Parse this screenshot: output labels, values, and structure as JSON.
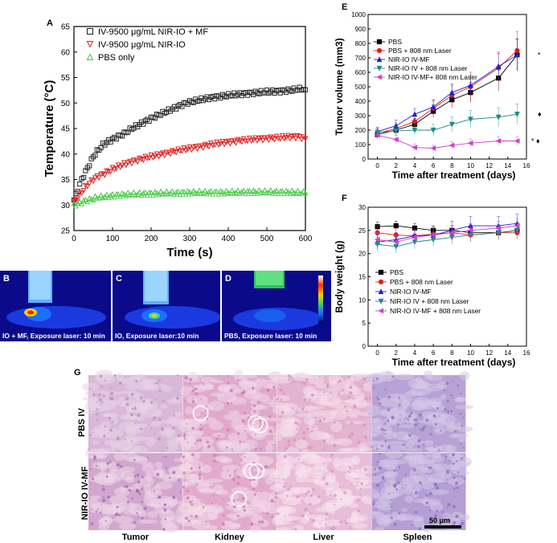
{
  "panel_letters": {
    "A": "A",
    "B": "B",
    "C": "C",
    "D": "D",
    "E": "E",
    "F": "F",
    "G": "G"
  },
  "chart_data": [
    {
      "id": "A",
      "type": "scatter",
      "xlabel": "Time (s)",
      "ylabel": "Temperature (°C)",
      "xlim": [
        0,
        600
      ],
      "ylim": [
        25,
        65
      ],
      "xticks": [
        0,
        100,
        200,
        300,
        400,
        500,
        600
      ],
      "yticks": [
        25,
        30,
        35,
        40,
        45,
        50,
        55,
        60,
        65
      ],
      "legend_position": "top-right",
      "series": [
        {
          "name": "IV-9500 μg/mL NIR-IO + MF",
          "marker": "square",
          "color": "#222222",
          "x": [
            0,
            10,
            20,
            30,
            40,
            50,
            60,
            75,
            90,
            110,
            130,
            150,
            175,
            200,
            230,
            260,
            290,
            320,
            350,
            380,
            410,
            440,
            470,
            500,
            530,
            560,
            590,
            600
          ],
          "y": [
            31,
            33,
            35,
            36.5,
            38,
            39.5,
            40.5,
            41.8,
            42.5,
            43.3,
            44,
            45,
            46,
            47,
            48,
            49,
            50,
            50.5,
            51,
            51.3,
            51.6,
            51.8,
            52,
            52.2,
            52.3,
            52.5,
            52.8,
            52.6
          ]
        },
        {
          "name": "IV-9500 μg/mL NIR-IO",
          "marker": "triangle-down",
          "color": "#e02020",
          "x": [
            0,
            10,
            20,
            30,
            40,
            50,
            60,
            80,
            100,
            130,
            160,
            190,
            220,
            250,
            280,
            310,
            340,
            370,
            400,
            430,
            460,
            490,
            520,
            550,
            580,
            600
          ],
          "y": [
            30.5,
            31.5,
            32.5,
            33.5,
            34.3,
            35,
            35.5,
            36.2,
            37,
            38,
            38.7,
            39.3,
            39.8,
            40.3,
            40.8,
            41.2,
            41.6,
            42,
            42.3,
            42.6,
            42.8,
            43,
            43.1,
            43.3,
            43.4,
            43
          ]
        },
        {
          "name": "PBS only",
          "marker": "triangle-up",
          "color": "#44cc44",
          "x": [
            0,
            10,
            20,
            30,
            40,
            50,
            60,
            80,
            100,
            130,
            160,
            200,
            250,
            300,
            350,
            400,
            450,
            500,
            550,
            600
          ],
          "y": [
            30,
            30.3,
            30.6,
            30.9,
            31.1,
            31.3,
            31.5,
            31.7,
            31.9,
            32.1,
            32.2,
            32.3,
            32.4,
            32.5,
            32.5,
            32.5,
            32.6,
            32.6,
            32.6,
            32.4
          ]
        }
      ]
    },
    {
      "id": "E",
      "type": "line",
      "xlabel": "Time after treatment (days)",
      "ylabel": "Tumor volume (mm3)",
      "xlim": [
        -1,
        16
      ],
      "ylim": [
        0,
        1000
      ],
      "xticks": [
        0,
        2,
        4,
        6,
        8,
        10,
        12,
        14,
        16
      ],
      "yticks": [
        0,
        100,
        200,
        300,
        400,
        500,
        600,
        700,
        800,
        900,
        1000
      ],
      "legend_position": "top-left",
      "markers_right": [
        "*",
        "♦",
        "* ♦"
      ],
      "x": [
        0,
        2,
        4,
        6,
        8,
        10,
        13,
        15
      ],
      "series": [
        {
          "name": "PBS",
          "marker": "square",
          "color": "#000000",
          "values": [
            170,
            200,
            240,
            330,
            410,
            460,
            560,
            720
          ],
          "err": [
            30,
            35,
            40,
            45,
            55,
            70,
            90,
            110
          ]
        },
        {
          "name": "PBS + 808 nm Laser",
          "marker": "circle",
          "color": "#e02020",
          "values": [
            180,
            210,
            260,
            350,
            440,
            500,
            630,
            750
          ],
          "err": [
            30,
            40,
            45,
            55,
            70,
            100,
            110,
            130
          ]
        },
        {
          "name": "NIR-IO IV-MF",
          "marker": "triangle-up",
          "color": "#2020d0",
          "values": [
            190,
            230,
            310,
            360,
            460,
            510,
            640,
            720
          ],
          "err": [
            30,
            40,
            40,
            50,
            60,
            70,
            90,
            110
          ]
        },
        {
          "name": "NIR-IO IV + 808 nm Laser",
          "marker": "triangle-down",
          "color": "#1a8a8a",
          "values": [
            185,
            195,
            200,
            200,
            240,
            275,
            290,
            310
          ],
          "err": [
            30,
            30,
            35,
            40,
            50,
            60,
            65,
            70
          ]
        },
        {
          "name": "NIR-IO IV-MF+ 808 nm Laser",
          "marker": "triangle-left",
          "color": "#d040d0",
          "values": [
            165,
            135,
            80,
            75,
            95,
            110,
            125,
            125
          ],
          "err": [
            25,
            30,
            25,
            20,
            25,
            30,
            30,
            30
          ]
        }
      ]
    },
    {
      "id": "F",
      "type": "line",
      "xlabel": "Time after treatment (days)",
      "ylabel": "Body weight (g)",
      "xlim": [
        -1,
        16
      ],
      "ylim": [
        0,
        30
      ],
      "xticks": [
        0,
        2,
        4,
        6,
        8,
        10,
        12,
        14,
        16
      ],
      "yticks": [
        0,
        5,
        10,
        15,
        20,
        25,
        30
      ],
      "legend_position": "center-left",
      "x": [
        0,
        2,
        4,
        6,
        8,
        10,
        13,
        15
      ],
      "series": [
        {
          "name": "PBS",
          "marker": "square",
          "color": "#000000",
          "values": [
            25.8,
            26.0,
            25.5,
            25.0,
            25.0,
            24.5,
            24.5,
            25.0
          ],
          "err": [
            1,
            1,
            1,
            1,
            1,
            1,
            1,
            1
          ]
        },
        {
          "name": "PBS + 808 nm Laser",
          "marker": "circle",
          "color": "#e02020",
          "values": [
            24.5,
            24.0,
            23.8,
            24.2,
            24.5,
            24.0,
            24.5,
            24.5
          ],
          "err": [
            1.5,
            1.5,
            1.5,
            1.5,
            1.5,
            1.5,
            1.5,
            1.5
          ]
        },
        {
          "name": "NIR-IO IV-MF",
          "marker": "triangle-up",
          "color": "#2020d0",
          "values": [
            22.5,
            23.0,
            23.8,
            24.0,
            25.0,
            26.0,
            26.0,
            26.5
          ],
          "err": [
            1.5,
            1.5,
            1.5,
            1.5,
            2,
            2,
            2,
            2
          ]
        },
        {
          "name": "NIR-IO IV + 808 nm Laser",
          "marker": "triangle-down",
          "color": "#1a8a8a",
          "values": [
            22.0,
            21.5,
            22.5,
            23.0,
            23.5,
            24.0,
            24.5,
            25.0
          ],
          "err": [
            1.5,
            1.5,
            1.5,
            1.5,
            1.5,
            1.5,
            1.5,
            1.5
          ]
        },
        {
          "name": "NIR-IO IV-MF + 808 nm Laser",
          "marker": "triangle-left",
          "color": "#d040d0",
          "values": [
            23.0,
            22.5,
            23.5,
            24.0,
            24.5,
            25.0,
            25.5,
            26.0
          ],
          "err": [
            1.5,
            1.5,
            1.5,
            1.5,
            1.5,
            1.5,
            1.5,
            1.5
          ]
        }
      ]
    }
  ],
  "thermal": [
    {
      "letter": "B",
      "caption": "IO + MF, Exposure laser: 10 min",
      "hotspot": "high"
    },
    {
      "letter": "C",
      "caption": "IO, Exposure laser:10 min",
      "hotspot": "medium"
    },
    {
      "letter": "D",
      "caption": "PBS, Exposure laser: 10 min",
      "hotspot": "low"
    }
  ],
  "histology": {
    "rows": [
      "PBS IV",
      "NIR-IO IV-MF"
    ],
    "columns": [
      "Tumor",
      "Kidney",
      "Liver",
      "Spleen"
    ],
    "scale_bar": "50 μm"
  }
}
